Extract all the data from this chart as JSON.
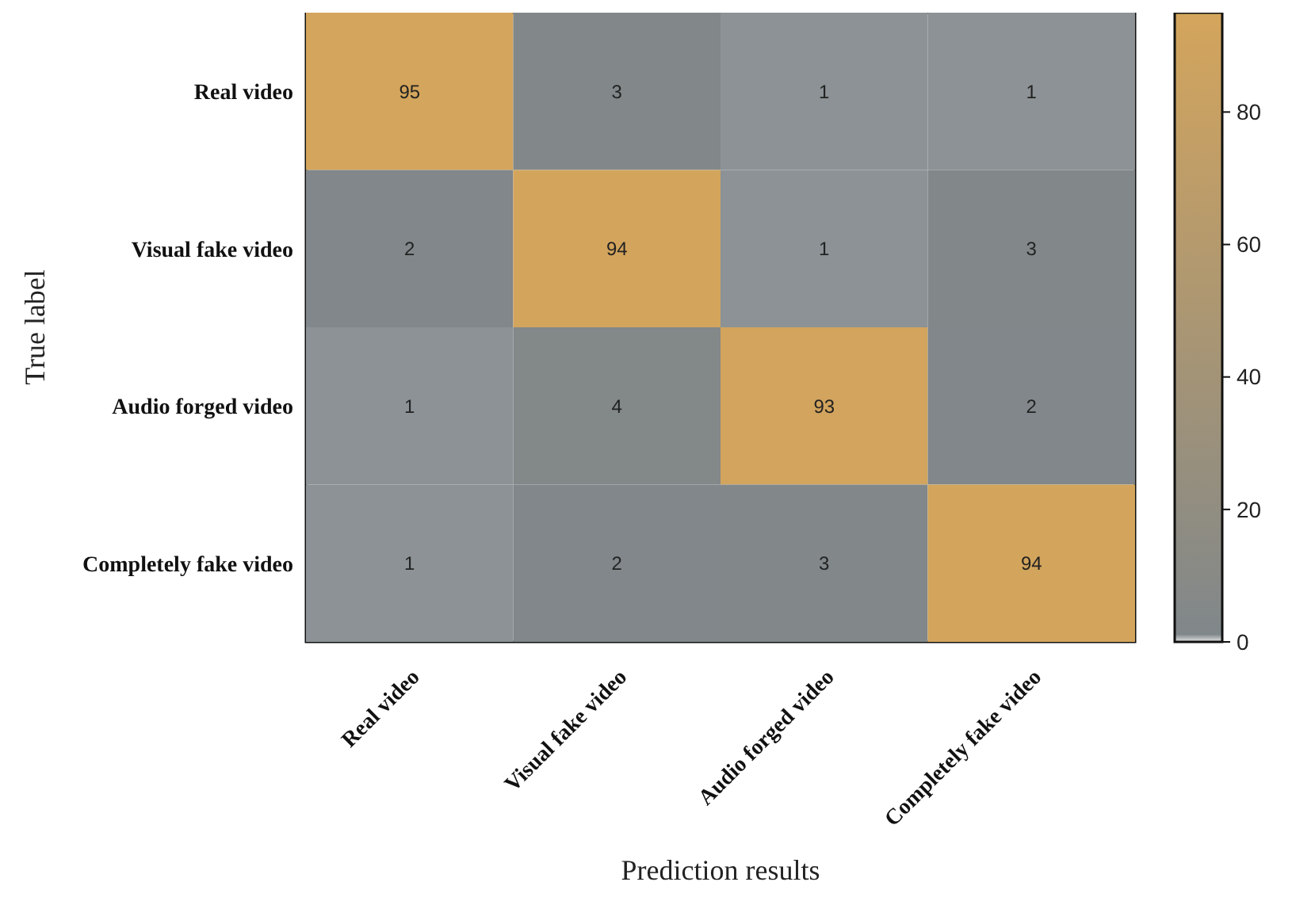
{
  "chart_data": {
    "type": "heatmap",
    "xlabel": "Prediction results",
    "ylabel": "True label",
    "categories": [
      "Real video",
      "Visual fake video",
      "Audio forged video",
      "Completely fake video"
    ],
    "y_categories": [
      "Real video",
      "Visual fake video",
      "Audio forged video",
      "Completely fake video"
    ],
    "cells": [
      [
        95,
        3,
        1,
        1
      ],
      [
        2,
        94,
        1,
        3
      ],
      [
        1,
        4,
        93,
        2
      ],
      [
        1,
        2,
        3,
        94
      ]
    ],
    "clim": [
      0,
      95
    ],
    "cticks": [
      0,
      20,
      40,
      60,
      80
    ],
    "data_labels": true
  }
}
